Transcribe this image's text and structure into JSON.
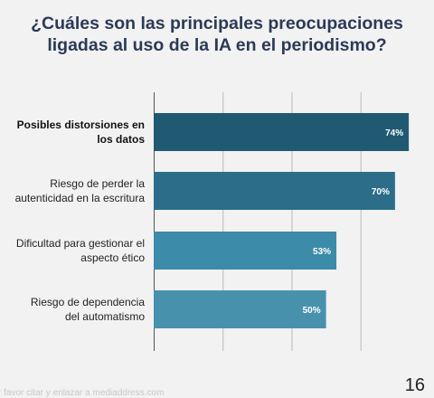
{
  "chart_data": {
    "type": "bar",
    "orientation": "horizontal",
    "title_lines": [
      "¿Cuáles son las principales preocupaciones",
      "ligadas al uso de la IA en el periodismo?"
    ],
    "categories": [
      [
        "Posibles distorsiones en",
        "los datos"
      ],
      [
        "Riesgo de perder la",
        "autenticidad en la escritura"
      ],
      [
        "Dificultad para gestionar el",
        "aspecto ético"
      ],
      [
        "Riesgo de dependencia",
        "del automatismo"
      ]
    ],
    "values": [
      74,
      70,
      53,
      50
    ],
    "data_labels": [
      "74%",
      "70%",
      "53%",
      "50%"
    ],
    "xlim": [
      0,
      80
    ],
    "grid": true,
    "bar_colors": [
      "#1f5a72",
      "#2c6e89",
      "#3c8ba8",
      "#4891ad"
    ],
    "first_category_bold": true
  },
  "footer": {
    "note": "r favor citar y enlazar a mediaddress.com",
    "page_number": "16"
  }
}
